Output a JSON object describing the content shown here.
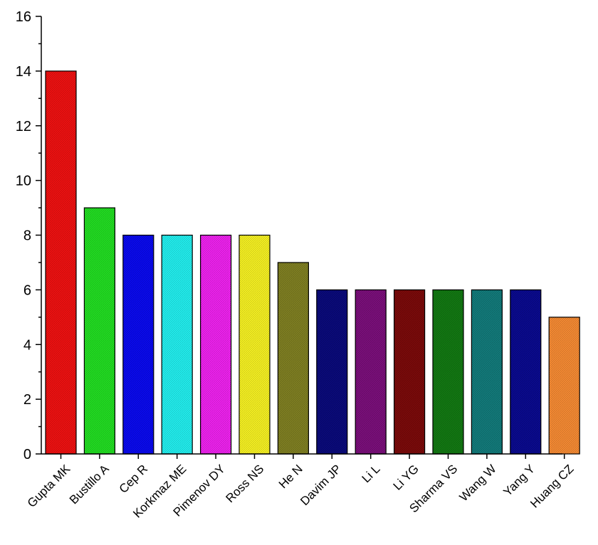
{
  "chart_data": {
    "type": "bar",
    "categories": [
      "Gupta MK",
      "Bustillo A",
      "Cep R",
      "Korkmaz ME",
      "Pimenov DY",
      "Ross NS",
      "He N",
      "Davim JP",
      "Li L",
      "Li YG",
      "Sharma VS",
      "Wang W",
      "Yang Y",
      "Huang CZ"
    ],
    "values": [
      14,
      9,
      8,
      8,
      8,
      8,
      7,
      6,
      6,
      6,
      6,
      6,
      6,
      5
    ],
    "colors": [
      "#ee1111",
      "#22dd22",
      "#0a0aee",
      "#22eeee",
      "#ee22ee",
      "#f5f022",
      "#7f7f22",
      "#0a0a7a",
      "#7a0f7a",
      "#7a0a0a",
      "#127812",
      "#127a7a",
      "#0a0a8e",
      "#f58a33"
    ],
    "ylim": [
      0,
      16
    ],
    "yticks": [
      0,
      2,
      4,
      6,
      8,
      10,
      12,
      14,
      16
    ],
    "title": "",
    "xlabel": "",
    "ylabel": "",
    "grid": false,
    "legend": "none"
  }
}
